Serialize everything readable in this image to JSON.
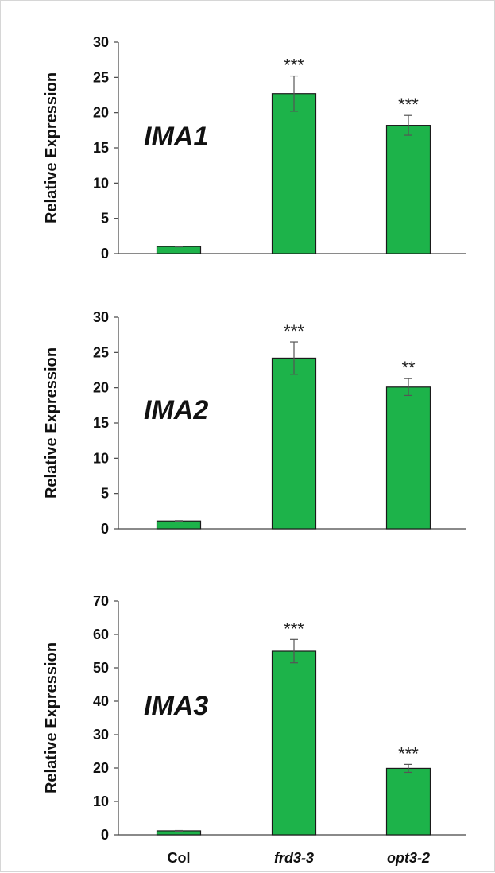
{
  "chart_data": [
    {
      "type": "bar",
      "panel_label": "IMA1",
      "ylabel": "Relative Expression",
      "categories": [
        "Col",
        "frd3-3",
        "opt3-2"
      ],
      "values": [
        1,
        22.7,
        18.2
      ],
      "errors": [
        0.05,
        2.5,
        1.4
      ],
      "significance": [
        "",
        "***",
        "***"
      ],
      "ylim": [
        0,
        30
      ],
      "yticks": [
        0,
        5,
        10,
        15,
        20,
        25,
        30
      ],
      "grid": false,
      "bar_color": "#1db34a"
    },
    {
      "type": "bar",
      "panel_label": "IMA2",
      "ylabel": "Relative Expression",
      "categories": [
        "Col",
        "frd3-3",
        "opt3-2"
      ],
      "values": [
        1.1,
        24.2,
        20.1
      ],
      "errors": [
        0.05,
        2.3,
        1.2
      ],
      "significance": [
        "",
        "***",
        "**"
      ],
      "ylim": [
        0,
        30
      ],
      "yticks": [
        0,
        5,
        10,
        15,
        20,
        25,
        30
      ],
      "grid": false,
      "bar_color": "#1db34a"
    },
    {
      "type": "bar",
      "panel_label": "IMA3",
      "ylabel": "Relative Expression",
      "categories": [
        "Col",
        "frd3-3",
        "opt3-2"
      ],
      "values": [
        1.2,
        55,
        19.9
      ],
      "errors": [
        0.1,
        3.5,
        1.2
      ],
      "significance": [
        "",
        "***",
        "***"
      ],
      "ylim": [
        0,
        70
      ],
      "yticks": [
        0,
        10,
        20,
        30,
        40,
        50,
        60,
        70
      ],
      "grid": false,
      "bar_color": "#1db34a",
      "show_category_labels": true
    }
  ]
}
